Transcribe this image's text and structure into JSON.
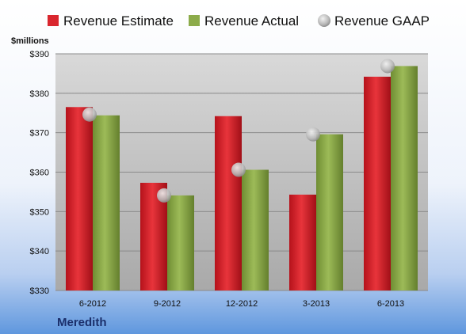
{
  "chart_data": {
    "type": "bar",
    "categories": [
      "6-2012",
      "9-2012",
      "12-2012",
      "3-2013",
      "6-2013"
    ],
    "series": [
      {
        "name": "Revenue Estimate",
        "kind": "bar",
        "color": "#d9262e",
        "values": [
          376.5,
          357.3,
          374.2,
          354.3,
          384.2
        ]
      },
      {
        "name": "Revenue Actual",
        "kind": "bar",
        "color": "#8cab4a",
        "values": [
          374.4,
          354.1,
          360.6,
          369.6,
          386.9
        ]
      },
      {
        "name": "Revenue GAAP",
        "kind": "point",
        "color": "#c8c8c8",
        "values": [
          374.6,
          354.1,
          360.6,
          369.6,
          386.9
        ]
      }
    ],
    "ylabel": "$millions",
    "ylim": [
      330,
      390
    ],
    "yticks": [
      330,
      340,
      350,
      360,
      370,
      380,
      390
    ],
    "ytick_labels": [
      "$330",
      "$340",
      "$350",
      "$360",
      "$370",
      "$380",
      "$390"
    ],
    "grid": true,
    "legend": "top"
  },
  "company": "Meredith"
}
